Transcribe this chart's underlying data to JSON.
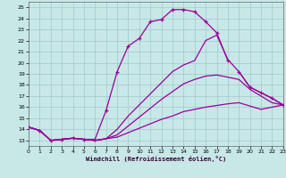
{
  "background_color": "#c8e8e8",
  "grid_color": "#a0c8c8",
  "line_color": "#990099",
  "xlabel": "Windchill (Refroidissement éolien,°C)",
  "xlim": [
    0,
    23
  ],
  "ylim": [
    12.5,
    25.5
  ],
  "xticks": [
    0,
    1,
    2,
    3,
    4,
    5,
    6,
    7,
    8,
    9,
    10,
    11,
    12,
    13,
    14,
    15,
    16,
    17,
    18,
    19,
    20,
    21,
    22,
    23
  ],
  "yticks": [
    13,
    14,
    15,
    16,
    17,
    18,
    19,
    20,
    21,
    22,
    23,
    24,
    25
  ],
  "curve_main_x": [
    0,
    1,
    2,
    3,
    4,
    5,
    6,
    7,
    8,
    9,
    10,
    11,
    12,
    13,
    14,
    15,
    16,
    17,
    18
  ],
  "curve_main_y": [
    14.2,
    13.9,
    13.0,
    13.1,
    13.2,
    13.1,
    13.1,
    15.7,
    19.2,
    21.5,
    22.2,
    23.7,
    23.9,
    24.8,
    24.8,
    24.6,
    23.7,
    22.7,
    20.2
  ],
  "curve_low_x": [
    0,
    1,
    2,
    3,
    4,
    5,
    6,
    7,
    8,
    9,
    10,
    11,
    12,
    13,
    14,
    15,
    16,
    17,
    18,
    19,
    20,
    21,
    22,
    23
  ],
  "curve_low_y": [
    14.2,
    13.9,
    13.0,
    13.1,
    13.2,
    13.1,
    13.0,
    13.15,
    13.3,
    13.7,
    14.1,
    14.5,
    14.9,
    15.2,
    15.6,
    15.8,
    16.0,
    16.15,
    16.3,
    16.4,
    16.1,
    15.8,
    16.0,
    16.2
  ],
  "curve_mid_x": [
    0,
    1,
    2,
    3,
    4,
    5,
    6,
    7,
    8,
    9,
    10,
    11,
    12,
    13,
    14,
    15,
    16,
    17,
    18,
    19,
    20,
    21,
    22,
    23
  ],
  "curve_mid_y": [
    14.2,
    13.9,
    13.0,
    13.1,
    13.2,
    13.1,
    13.0,
    13.15,
    13.5,
    14.3,
    15.1,
    15.9,
    16.7,
    17.4,
    18.1,
    18.5,
    18.8,
    18.9,
    18.7,
    18.5,
    17.6,
    17.0,
    16.4,
    16.2
  ],
  "curve_high_x": [
    0,
    1,
    2,
    3,
    4,
    5,
    6,
    7,
    8,
    9,
    10,
    11,
    12,
    13,
    14,
    15,
    16,
    17,
    18,
    19,
    20,
    21,
    22,
    23
  ],
  "curve_high_y": [
    14.2,
    13.9,
    13.0,
    13.1,
    13.2,
    13.1,
    13.0,
    13.15,
    14.0,
    15.2,
    16.2,
    17.2,
    18.2,
    19.2,
    19.8,
    20.2,
    22.0,
    22.5,
    20.3,
    19.2,
    17.8,
    17.3,
    16.8,
    16.2
  ],
  "tail_marker_x": [
    19,
    20,
    21,
    22,
    23
  ],
  "tail_marker_y": [
    19.2,
    17.8,
    17.3,
    16.8,
    16.2
  ]
}
